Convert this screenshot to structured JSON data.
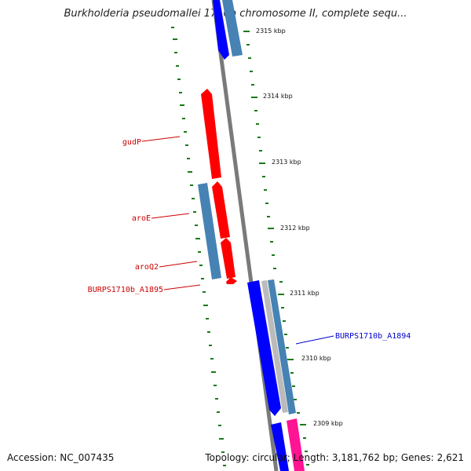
{
  "title": "Burkholderia pseudomallei 1710b chromosome II, complete sequ...",
  "footer": {
    "accession": "Accession: NC_007435",
    "summary": "Topology: circular; Length: 3,181,762 bp; Genes: 2,621"
  },
  "ticks": [
    {
      "label": "2315 kbp"
    },
    {
      "label": "2314 kbp"
    },
    {
      "label": "2313 kbp"
    },
    {
      "label": "2312 kbp"
    },
    {
      "label": "2311 kbp"
    },
    {
      "label": "2310 kbp"
    },
    {
      "label": "2309 kbp"
    }
  ],
  "gene_labels": {
    "gudP": "gudP",
    "aroE": "aroE",
    "aroQ2": "aroQ2",
    "a1895": "BURPS1710b_A1895",
    "a1894": "BURPS1710b_A1894"
  },
  "colors": {
    "backbone": "#808080",
    "forward_gene": "#ff0000",
    "reverse_gene": "#0000ff",
    "steelblue_feature": "#4682b4",
    "pink_feature": "#ff1493",
    "gray_feature": "#bbbbbb",
    "tick_mark": "#1a7a1a",
    "forward_label": "#cc0000",
    "reverse_label": "#0000cc"
  }
}
